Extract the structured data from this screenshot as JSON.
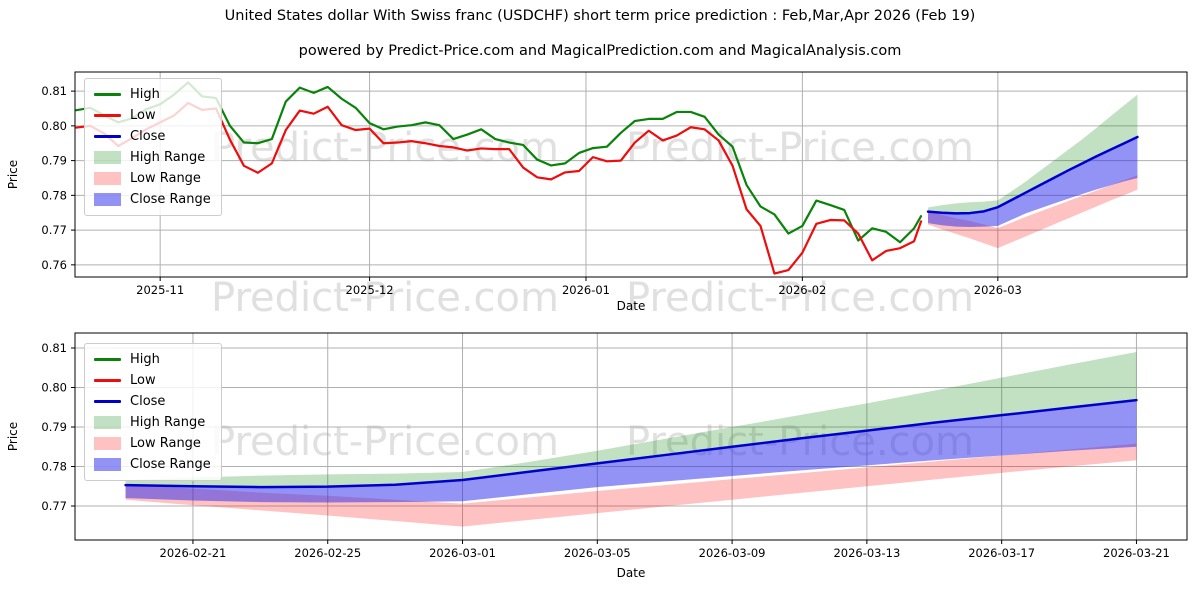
{
  "header": {
    "title": "United States dollar With Swiss franc (USDCHF) short term price prediction : Feb,Mar,Apr 2026 (Feb 19)",
    "subtitle": "powered by Predict-Price.com and MagicalPrediction.com and MagicalAnalysis.com"
  },
  "watermark": "Predict-Price.com",
  "colors": {
    "high": "#0a830a",
    "low": "#ee0c0c",
    "close": "#0000cc",
    "high_range": "rgba(0,128,0,0.24)",
    "low_range": "rgba(255,0,0,0.24)",
    "close_range": "rgba(40,40,235,0.50)",
    "grid": "#b0b0b0",
    "frame": "#000000",
    "watermark": "#e0e0e0",
    "text": "#000000"
  },
  "legend": {
    "items": [
      {
        "label": "High",
        "swatch": "line",
        "color": "high"
      },
      {
        "label": "Low",
        "swatch": "line",
        "color": "low"
      },
      {
        "label": "Close",
        "swatch": "line",
        "color": "close"
      },
      {
        "label": "High Range",
        "swatch": "patch",
        "color": "high_range"
      },
      {
        "label": "Low Range",
        "swatch": "patch",
        "color": "low_range"
      },
      {
        "label": "Close Range",
        "swatch": "patch",
        "color": "close_range"
      }
    ]
  },
  "chart_data": [
    {
      "type": "line",
      "name": "price-history-with-forecast",
      "xlabel": "Date",
      "ylabel": "Price",
      "grid": true,
      "legend_position": "upper left",
      "epoch": "2025-10-20",
      "t_unit": "days",
      "ylim": [
        0.7565,
        0.8155
      ],
      "xlim_t": [
        -0.2,
        159.1
      ],
      "x_ticks": [
        {
          "label": "2025-11",
          "t": 12
        },
        {
          "label": "2025-12",
          "t": 42
        },
        {
          "label": "2026-01",
          "t": 73
        },
        {
          "label": "2026-02",
          "t": 104
        },
        {
          "label": "2026-03",
          "t": 132
        }
      ],
      "y_ticks": [
        {
          "label": "0.76",
          "v": 0.76
        },
        {
          "label": "0.77",
          "v": 0.77
        },
        {
          "label": "0.78",
          "v": 0.78
        },
        {
          "label": "0.79",
          "v": 0.79
        },
        {
          "label": "0.80",
          "v": 0.8
        },
        {
          "label": "0.81",
          "v": 0.81
        }
      ],
      "series": [
        {
          "name": "High",
          "color": "high",
          "width": 2.2,
          "t": [
            0,
            2,
            4,
            6,
            8,
            10,
            12,
            14,
            16,
            18,
            20,
            22,
            24,
            26,
            28,
            30,
            32,
            34,
            36,
            38,
            40,
            42,
            44,
            46,
            48,
            50,
            52,
            54,
            56,
            58,
            60,
            62,
            64,
            66,
            68,
            70,
            72,
            74,
            76,
            78,
            80,
            82,
            84,
            86,
            88,
            90,
            92,
            94,
            96,
            98,
            100,
            102,
            104,
            106,
            108,
            110,
            112,
            114,
            116,
            118,
            120,
            121
          ],
          "values": [
            0.8045,
            0.8052,
            0.803,
            0.801,
            0.8022,
            0.8048,
            0.8062,
            0.809,
            0.8125,
            0.8085,
            0.808,
            0.8,
            0.7952,
            0.795,
            0.7962,
            0.807,
            0.811,
            0.8095,
            0.8112,
            0.8078,
            0.8052,
            0.8008,
            0.799,
            0.7998,
            0.8002,
            0.801,
            0.8002,
            0.7962,
            0.7975,
            0.799,
            0.7962,
            0.7952,
            0.7945,
            0.7903,
            0.7886,
            0.7892,
            0.7922,
            0.7936,
            0.794,
            0.798,
            0.8014,
            0.802,
            0.802,
            0.804,
            0.804,
            0.8026,
            0.7975,
            0.794,
            0.783,
            0.7768,
            0.7745,
            0.769,
            0.7712,
            0.7785,
            0.7772,
            0.7758,
            0.767,
            0.7705,
            0.7695,
            0.7665,
            0.7705,
            0.774
          ]
        },
        {
          "name": "Low",
          "color": "low",
          "width": 2.2,
          "t": [
            0,
            2,
            4,
            6,
            8,
            10,
            12,
            14,
            16,
            18,
            20,
            22,
            24,
            26,
            28,
            30,
            32,
            34,
            36,
            38,
            40,
            42,
            44,
            46,
            48,
            50,
            52,
            54,
            56,
            58,
            60,
            62,
            64,
            66,
            68,
            70,
            72,
            74,
            76,
            78,
            80,
            82,
            84,
            86,
            88,
            90,
            92,
            94,
            96,
            98,
            100,
            102,
            104,
            106,
            108,
            110,
            112,
            114,
            116,
            118,
            120,
            121
          ],
          "values": [
            0.7995,
            0.8,
            0.7978,
            0.7942,
            0.7965,
            0.799,
            0.801,
            0.803,
            0.8066,
            0.8046,
            0.805,
            0.796,
            0.7885,
            0.7865,
            0.7892,
            0.7988,
            0.8044,
            0.8035,
            0.8055,
            0.8002,
            0.7988,
            0.7992,
            0.795,
            0.7952,
            0.7956,
            0.795,
            0.7942,
            0.7938,
            0.7929,
            0.7935,
            0.7933,
            0.7933,
            0.788,
            0.7852,
            0.7846,
            0.7866,
            0.787,
            0.791,
            0.7898,
            0.79,
            0.7952,
            0.7986,
            0.7958,
            0.7972,
            0.7996,
            0.799,
            0.7958,
            0.7885,
            0.776,
            0.7712,
            0.7575,
            0.7585,
            0.7635,
            0.7718,
            0.7729,
            0.7728,
            0.769,
            0.7613,
            0.764,
            0.7648,
            0.7668,
            0.7725
          ]
        },
        {
          "name": "Close",
          "color": "close",
          "width": 2.5,
          "t": [
            122,
            124,
            126,
            128,
            130,
            132,
            134,
            136,
            138,
            140,
            142,
            144,
            146,
            148,
            150,
            152
          ],
          "values": [
            0.7753,
            0.775,
            0.7748,
            0.7749,
            0.7754,
            0.7766,
            0.7787,
            0.7808,
            0.7829,
            0.785,
            0.7871,
            0.7891,
            0.7911,
            0.793,
            0.7949,
            0.7968
          ]
        }
      ],
      "bands": [
        {
          "name": "High Range",
          "color": "high_range",
          "t": [
            122,
            124,
            126,
            128,
            130,
            132,
            134,
            136,
            138,
            140,
            142,
            144,
            146,
            148,
            150,
            152
          ],
          "upper": [
            0.7765,
            0.7772,
            0.7777,
            0.778,
            0.7782,
            0.7786,
            0.7812,
            0.784,
            0.787,
            0.79,
            0.793,
            0.796,
            0.7992,
            0.8025,
            0.8058,
            0.809
          ],
          "lower": [
            0.7753,
            0.775,
            0.7748,
            0.7749,
            0.7754,
            0.7766,
            0.7787,
            0.7808,
            0.7829,
            0.785,
            0.7871,
            0.7891,
            0.7911,
            0.793,
            0.7949,
            0.7968
          ]
        },
        {
          "name": "Low Range",
          "color": "low_range",
          "t": [
            122,
            124,
            126,
            128,
            130,
            132,
            134,
            136,
            138,
            140,
            142,
            144,
            146,
            148,
            150,
            152
          ],
          "upper": [
            0.7755,
            0.7744,
            0.7734,
            0.7726,
            0.7716,
            0.7706,
            0.7722,
            0.7738,
            0.7753,
            0.7768,
            0.7783,
            0.7798,
            0.7813,
            0.7828,
            0.7843,
            0.7858
          ],
          "lower": [
            0.7716,
            0.7702,
            0.7689,
            0.7676,
            0.7662,
            0.7648,
            0.7665,
            0.7682,
            0.7699,
            0.7716,
            0.7733,
            0.775,
            0.7767,
            0.7784,
            0.78,
            0.7816
          ]
        },
        {
          "name": "Close Range",
          "color": "close_range",
          "t": [
            122,
            124,
            126,
            128,
            130,
            132,
            134,
            136,
            138,
            140,
            142,
            144,
            146,
            148,
            150,
            152
          ],
          "upper": [
            0.7753,
            0.775,
            0.7748,
            0.7749,
            0.7754,
            0.7766,
            0.7787,
            0.7808,
            0.7829,
            0.785,
            0.7871,
            0.7891,
            0.7911,
            0.793,
            0.7949,
            0.7968
          ],
          "lower": [
            0.772,
            0.7714,
            0.771,
            0.7709,
            0.771,
            0.7712,
            0.773,
            0.7748,
            0.7762,
            0.7776,
            0.779,
            0.7803,
            0.7816,
            0.7828,
            0.784,
            0.785
          ]
        }
      ]
    },
    {
      "type": "line",
      "name": "forecast-detail",
      "xlabel": "Date",
      "ylabel": "Price",
      "grid": true,
      "legend_position": "upper left",
      "epoch": "2025-10-20",
      "t_unit": "days",
      "ylim": [
        0.7614,
        0.8138
      ],
      "xlim_t": [
        120.5,
        153.5
      ],
      "x_ticks": [
        {
          "label": "2026-02-21",
          "t": 124
        },
        {
          "label": "2026-02-25",
          "t": 128
        },
        {
          "label": "2026-03-01",
          "t": 132
        },
        {
          "label": "2026-03-05",
          "t": 136
        },
        {
          "label": "2026-03-09",
          "t": 140
        },
        {
          "label": "2026-03-13",
          "t": 144
        },
        {
          "label": "2026-03-17",
          "t": 148
        },
        {
          "label": "2026-03-21",
          "t": 152
        }
      ],
      "y_ticks": [
        {
          "label": "0.77",
          "v": 0.77
        },
        {
          "label": "0.78",
          "v": 0.78
        },
        {
          "label": "0.79",
          "v": 0.79
        },
        {
          "label": "0.80",
          "v": 0.8
        },
        {
          "label": "0.81",
          "v": 0.81
        }
      ],
      "series": [
        {
          "name": "Close",
          "color": "close",
          "width": 2.5,
          "t": [
            122,
            124,
            126,
            128,
            130,
            132,
            134,
            136,
            138,
            140,
            142,
            144,
            146,
            148,
            150,
            152
          ],
          "values": [
            0.7753,
            0.775,
            0.7748,
            0.7749,
            0.7754,
            0.7766,
            0.7787,
            0.7808,
            0.7829,
            0.785,
            0.7871,
            0.7891,
            0.7911,
            0.793,
            0.7949,
            0.7968
          ]
        }
      ],
      "bands": [
        {
          "name": "High Range",
          "color": "high_range",
          "t": [
            122,
            124,
            126,
            128,
            130,
            132,
            134,
            136,
            138,
            140,
            142,
            144,
            146,
            148,
            150,
            152
          ],
          "upper": [
            0.7765,
            0.7772,
            0.7777,
            0.778,
            0.7782,
            0.7786,
            0.7812,
            0.784,
            0.787,
            0.79,
            0.793,
            0.796,
            0.7992,
            0.8025,
            0.8058,
            0.809
          ],
          "lower": [
            0.7753,
            0.775,
            0.7748,
            0.7749,
            0.7754,
            0.7766,
            0.7787,
            0.7808,
            0.7829,
            0.785,
            0.7871,
            0.7891,
            0.7911,
            0.793,
            0.7949,
            0.7968
          ]
        },
        {
          "name": "Low Range",
          "color": "low_range",
          "t": [
            122,
            124,
            126,
            128,
            130,
            132,
            134,
            136,
            138,
            140,
            142,
            144,
            146,
            148,
            150,
            152
          ],
          "upper": [
            0.7755,
            0.7744,
            0.7734,
            0.7726,
            0.7716,
            0.7706,
            0.7722,
            0.7738,
            0.7753,
            0.7768,
            0.7783,
            0.7798,
            0.7813,
            0.7828,
            0.7843,
            0.7858
          ],
          "lower": [
            0.7716,
            0.7702,
            0.7689,
            0.7676,
            0.7662,
            0.7648,
            0.7665,
            0.7682,
            0.7699,
            0.7716,
            0.7733,
            0.775,
            0.7767,
            0.7784,
            0.78,
            0.7816
          ]
        },
        {
          "name": "Close Range",
          "color": "close_range",
          "t": [
            122,
            124,
            126,
            128,
            130,
            132,
            134,
            136,
            138,
            140,
            142,
            144,
            146,
            148,
            150,
            152
          ],
          "upper": [
            0.7753,
            0.775,
            0.7748,
            0.7749,
            0.7754,
            0.7766,
            0.7787,
            0.7808,
            0.7829,
            0.785,
            0.7871,
            0.7891,
            0.7911,
            0.793,
            0.7949,
            0.7968
          ],
          "lower": [
            0.772,
            0.7714,
            0.771,
            0.7709,
            0.771,
            0.7712,
            0.773,
            0.7748,
            0.7762,
            0.7776,
            0.779,
            0.7803,
            0.7816,
            0.7828,
            0.784,
            0.785
          ]
        }
      ]
    }
  ]
}
